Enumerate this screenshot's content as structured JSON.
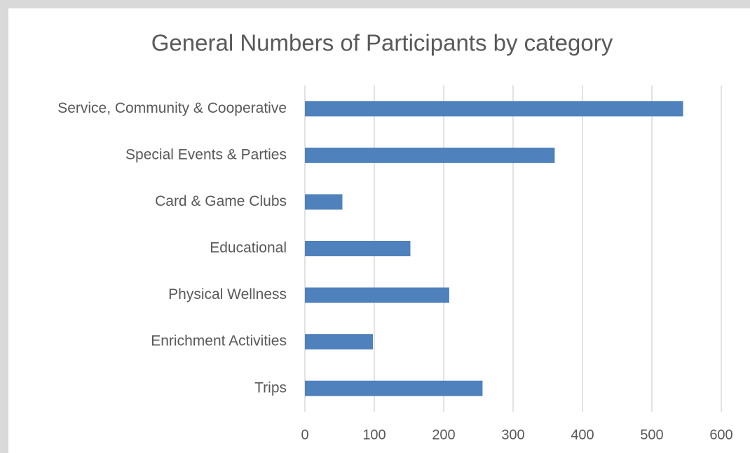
{
  "chart_data": {
    "type": "bar",
    "orientation": "horizontal",
    "title": "General Numbers of Participants by category",
    "categories": [
      "Service, Community & Cooperative",
      "Special Events & Parties",
      "Card & Game Clubs",
      "Educational",
      "Physical Wellness",
      "Enrichment Activities",
      "Trips"
    ],
    "values": [
      545,
      360,
      54,
      152,
      208,
      98,
      256
    ],
    "color": "#4f81bd",
    "xlim": [
      0,
      600
    ],
    "xticks": [
      0,
      100,
      200,
      300,
      400,
      500,
      600
    ],
    "grid": true
  }
}
